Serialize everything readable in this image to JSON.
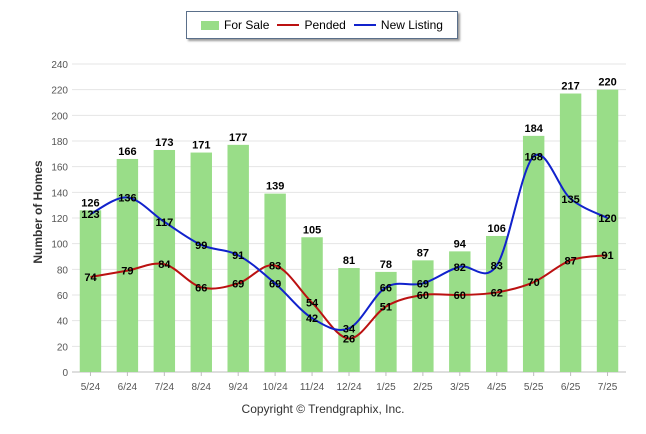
{
  "legend": {
    "for_sale": "For Sale",
    "pended": "Pended",
    "new_listing": "New Listing"
  },
  "footer": {
    "copyright": "Copyright © Trendgraphix, Inc."
  },
  "colors": {
    "for_sale": "#99dd88",
    "pended": "#bb1111",
    "new_listing": "#1122cc",
    "grid": "#e4e4e4",
    "axis_text": "#555555"
  },
  "chart_data": {
    "type": "bar",
    "categories": [
      "5/24",
      "6/24",
      "7/24",
      "8/24",
      "9/24",
      "10/24",
      "11/24",
      "12/24",
      "1/25",
      "2/25",
      "3/25",
      "4/25",
      "5/25",
      "6/25",
      "7/25"
    ],
    "ylabel": "Number of Homes",
    "xlabel": "",
    "ylim": [
      0,
      240
    ],
    "yticks": [
      0,
      20,
      40,
      60,
      80,
      100,
      120,
      140,
      160,
      180,
      200,
      220,
      240
    ],
    "grid": true,
    "legend_position": "top-center",
    "series": [
      {
        "name": "For Sale",
        "type": "bar",
        "values": [
          126,
          166,
          173,
          171,
          177,
          139,
          105,
          81,
          78,
          87,
          94,
          106,
          184,
          217,
          220
        ]
      },
      {
        "name": "Pended",
        "type": "line",
        "values": [
          74,
          79,
          84,
          66,
          69,
          83,
          54,
          26,
          51,
          60,
          60,
          62,
          70,
          87,
          91
        ]
      },
      {
        "name": "New Listing",
        "type": "line",
        "values": [
          123,
          136,
          117,
          99,
          91,
          69,
          42,
          34,
          66,
          69,
          82,
          83,
          168,
          135,
          120
        ]
      }
    ]
  }
}
